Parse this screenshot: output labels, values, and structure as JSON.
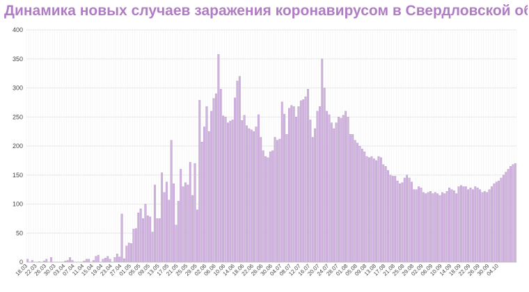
{
  "colors": {
    "title": "#b07cc4",
    "bar": "#d2b4e0",
    "bar_stroke": "#a57bbb",
    "grid": "#e6e6e6",
    "tick_text": "#444444"
  },
  "chart_data": {
    "type": "bar",
    "title": "Динамика новых случаев заражения коронавирусом в Свердловской области",
    "xlabel": "",
    "ylabel": "",
    "ylim": [
      0,
      400
    ],
    "yticks": [
      0,
      50,
      100,
      150,
      200,
      250,
      300,
      350,
      400
    ],
    "grid": true,
    "tick_labels": [
      "18.03",
      "22.03",
      "26.03",
      "30.03",
      "03.04",
      "07.04",
      "11.04",
      "15.04",
      "19.04",
      "23.04",
      "27.04",
      "01.05",
      "05.05",
      "09.05",
      "13.05",
      "17.05",
      "21.05",
      "25.05",
      "29.05",
      "02.06",
      "06.06",
      "10.06",
      "14.06",
      "18.06",
      "22.06",
      "26.06",
      "30.06",
      "04.07",
      "08.07",
      "12.07",
      "16.07",
      "20.07",
      "24.07",
      "28.07",
      "01.08",
      "05.08",
      "09.08",
      "13.08",
      "17.08",
      "21.08",
      "25.08",
      "29.08",
      "02.09",
      "06.09",
      "10.09",
      "14.09",
      "18.09",
      "22.09",
      "26.09",
      "30.09",
      "04.10"
    ],
    "values": [
      5,
      0,
      3,
      0,
      0,
      1,
      0,
      2,
      5,
      0,
      8,
      0,
      0,
      0,
      0,
      0,
      2,
      3,
      8,
      3,
      0,
      0,
      0,
      0,
      2,
      5,
      5,
      0,
      3,
      10,
      12,
      0,
      5,
      7,
      10,
      5,
      0,
      8,
      14,
      9,
      83,
      6,
      28,
      33,
      32,
      57,
      58,
      85,
      92,
      75,
      100,
      80,
      78,
      52,
      133,
      75,
      75,
      154,
      120,
      138,
      107,
      210,
      135,
      64,
      105,
      160,
      130,
      137,
      133,
      172,
      115,
      170,
      90,
      279,
      207,
      233,
      268,
      225,
      260,
      282,
      290,
      358,
      298,
      252,
      250,
      240,
      243,
      245,
      283,
      312,
      320,
      244,
      253,
      235,
      230,
      228,
      225,
      233,
      254,
      215,
      192,
      182,
      180,
      190,
      192,
      215,
      210,
      212,
      276,
      255,
      220,
      265,
      270,
      268,
      250,
      268,
      278,
      280,
      285,
      298,
      245,
      215,
      230,
      260,
      268,
      350,
      300,
      260,
      254,
      240,
      230,
      240,
      250,
      248,
      253,
      260,
      250,
      220,
      220,
      210,
      205,
      200,
      195,
      190,
      182,
      180,
      182,
      178,
      175,
      182,
      180,
      168,
      165,
      158,
      150,
      148,
      148,
      140,
      135,
      137,
      145,
      150,
      145,
      138,
      125,
      125,
      130,
      128,
      120,
      118,
      120,
      122,
      118,
      120,
      118,
      115,
      120,
      118,
      122,
      128,
      125,
      123,
      118,
      130,
      132,
      130,
      130,
      125,
      128,
      125,
      130,
      128,
      125,
      120,
      122,
      120,
      125,
      130,
      135,
      138,
      140,
      145,
      150,
      155,
      160,
      165,
      168,
      170
    ]
  }
}
